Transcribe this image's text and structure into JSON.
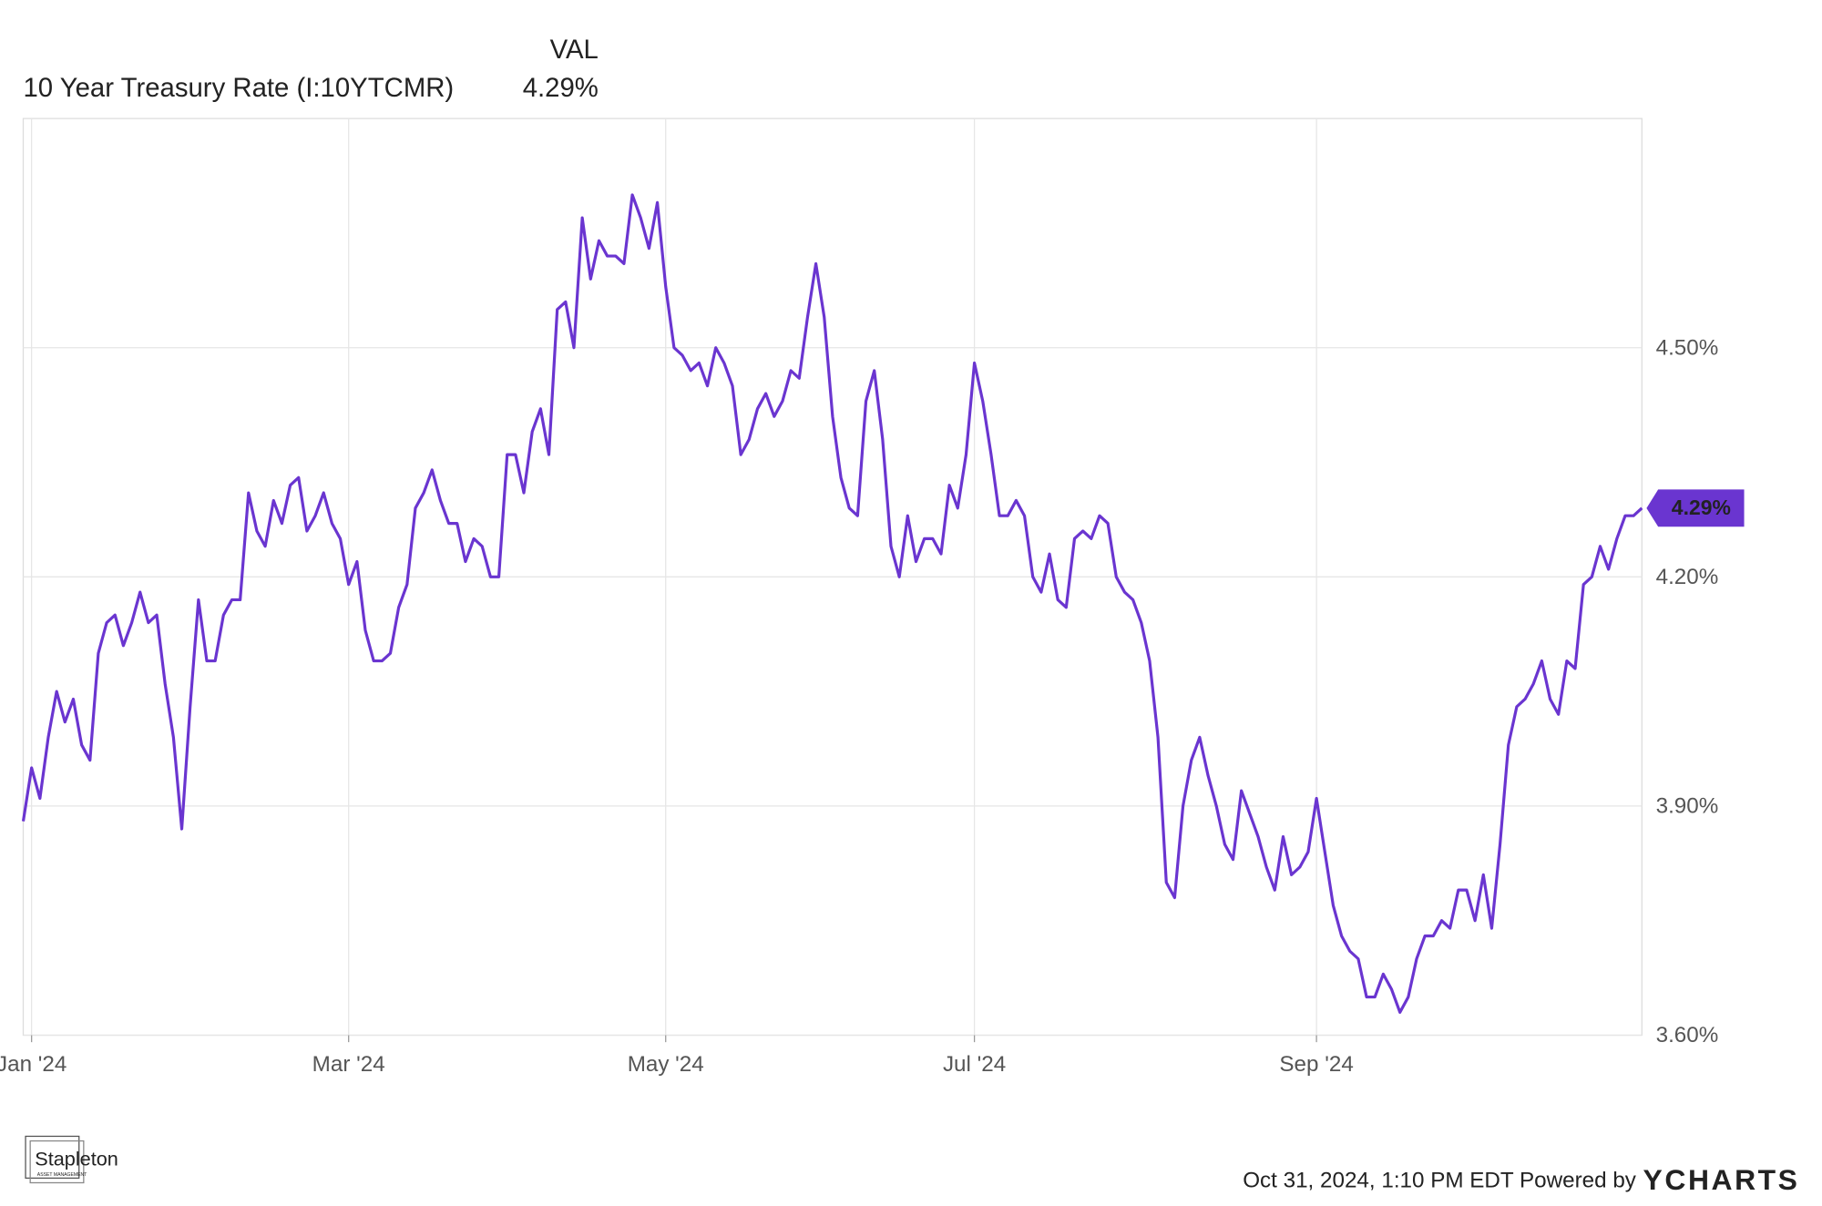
{
  "chart_data": {
    "type": "line",
    "series_header": "VAL",
    "series_name": "10 Year Treasury Rate (I:10YTCMR)",
    "last_value_label": "4.29%",
    "color": "#6a35d0",
    "categories": [
      null,
      "Jan '24",
      null,
      null,
      null,
      null,
      null,
      null,
      null,
      null,
      null,
      null,
      null,
      null,
      null,
      null,
      null,
      null,
      null,
      null,
      null,
      null,
      null,
      null,
      null,
      null,
      null,
      null,
      null,
      null,
      null,
      null,
      null,
      null,
      null,
      null,
      null,
      null,
      null,
      "Mar '24",
      null,
      null,
      null,
      null,
      null,
      null,
      null,
      null,
      null,
      null,
      null,
      null,
      null,
      null,
      null,
      null,
      null,
      null,
      null,
      null,
      null,
      null,
      null,
      null,
      null,
      null,
      null,
      null,
      null,
      null,
      null,
      null,
      null,
      null,
      null,
      null,
      null,
      "May '24",
      null,
      null,
      null,
      null,
      null,
      null,
      null,
      null,
      null,
      null,
      null,
      null,
      null,
      null,
      null,
      null,
      null,
      null,
      null,
      null,
      null,
      null,
      null,
      null,
      null,
      null,
      null,
      null,
      null,
      null,
      null,
      null,
      null,
      null,
      null,
      null,
      "Jul '24",
      null,
      null,
      null,
      null,
      null,
      null,
      null,
      null,
      null,
      null,
      null,
      null,
      null,
      null,
      null,
      null,
      null,
      null,
      null,
      null,
      null,
      null,
      null,
      null,
      null,
      null,
      null,
      null,
      null,
      null,
      null,
      null,
      null,
      null,
      null,
      null,
      null,
      null,
      null,
      null,
      "Sep '24",
      null,
      null,
      null,
      null,
      null,
      null,
      null,
      null,
      null,
      null,
      null,
      null,
      null,
      null,
      null,
      null,
      null,
      null,
      null,
      null,
      null,
      null,
      null,
      null,
      null,
      null,
      null,
      null,
      null,
      null,
      null,
      null,
      null,
      null,
      null,
      null,
      null,
      null,
      null
    ],
    "values": [
      3.88,
      3.95,
      3.91,
      3.99,
      4.05,
      4.01,
      4.04,
      3.98,
      3.96,
      4.1,
      4.14,
      4.15,
      4.11,
      4.14,
      4.18,
      4.14,
      4.15,
      4.06,
      3.99,
      3.87,
      4.03,
      4.17,
      4.09,
      4.09,
      4.15,
      4.17,
      4.17,
      4.31,
      4.26,
      4.24,
      4.3,
      4.27,
      4.32,
      4.33,
      4.26,
      4.28,
      4.31,
      4.27,
      4.25,
      4.19,
      4.22,
      4.13,
      4.09,
      4.09,
      4.1,
      4.16,
      4.19,
      4.29,
      4.31,
      4.34,
      4.3,
      4.27,
      4.27,
      4.22,
      4.25,
      4.24,
      4.2,
      4.2,
      4.36,
      4.36,
      4.31,
      4.39,
      4.42,
      4.36,
      4.55,
      4.56,
      4.5,
      4.67,
      4.59,
      4.64,
      4.62,
      4.62,
      4.61,
      4.7,
      4.67,
      4.63,
      4.69,
      4.58,
      4.5,
      4.49,
      4.47,
      4.48,
      4.45,
      4.5,
      4.48,
      4.45,
      4.36,
      4.38,
      4.42,
      4.44,
      4.41,
      4.43,
      4.47,
      4.46,
      4.54,
      4.61,
      4.54,
      4.41,
      4.33,
      4.29,
      4.28,
      4.43,
      4.47,
      4.38,
      4.24,
      4.2,
      4.28,
      4.22,
      4.25,
      4.25,
      4.23,
      4.32,
      4.29,
      4.36,
      4.48,
      4.43,
      4.36,
      4.28,
      4.28,
      4.3,
      4.28,
      4.2,
      4.18,
      4.23,
      4.17,
      4.16,
      4.25,
      4.26,
      4.25,
      4.28,
      4.27,
      4.2,
      4.18,
      4.17,
      4.14,
      4.09,
      3.99,
      3.8,
      3.78,
      3.9,
      3.96,
      3.99,
      3.94,
      3.9,
      3.85,
      3.83,
      3.92,
      3.89,
      3.86,
      3.82,
      3.79,
      3.86,
      3.81,
      3.82,
      3.84,
      3.91,
      3.84,
      3.77,
      3.73,
      3.71,
      3.7,
      3.65,
      3.65,
      3.68,
      3.66,
      3.63,
      3.65,
      3.7,
      3.73,
      3.73,
      3.75,
      3.74,
      3.79,
      3.79,
      3.75,
      3.81,
      3.74,
      3.85,
      3.98,
      4.03,
      4.04,
      4.06,
      4.09,
      4.04,
      4.02,
      4.09,
      4.08,
      4.19,
      4.2,
      4.24,
      4.21,
      4.25,
      4.28,
      4.28,
      4.29
    ],
    "ylim": [
      3.6,
      4.8
    ],
    "yticks": [
      {
        "value": 3.6,
        "label": "3.60%"
      },
      {
        "value": 3.9,
        "label": "3.90%"
      },
      {
        "value": 4.2,
        "label": "4.20%"
      },
      {
        "value": 4.5,
        "label": "4.50%"
      }
    ],
    "grid": true,
    "footer": {
      "timestamp": "Oct 31, 2024, 1:10 PM EDT Powered by",
      "brand": "YCHARTS",
      "logo": "Stapleton",
      "logo_sub": "ASSET MANAGEMENT"
    }
  }
}
